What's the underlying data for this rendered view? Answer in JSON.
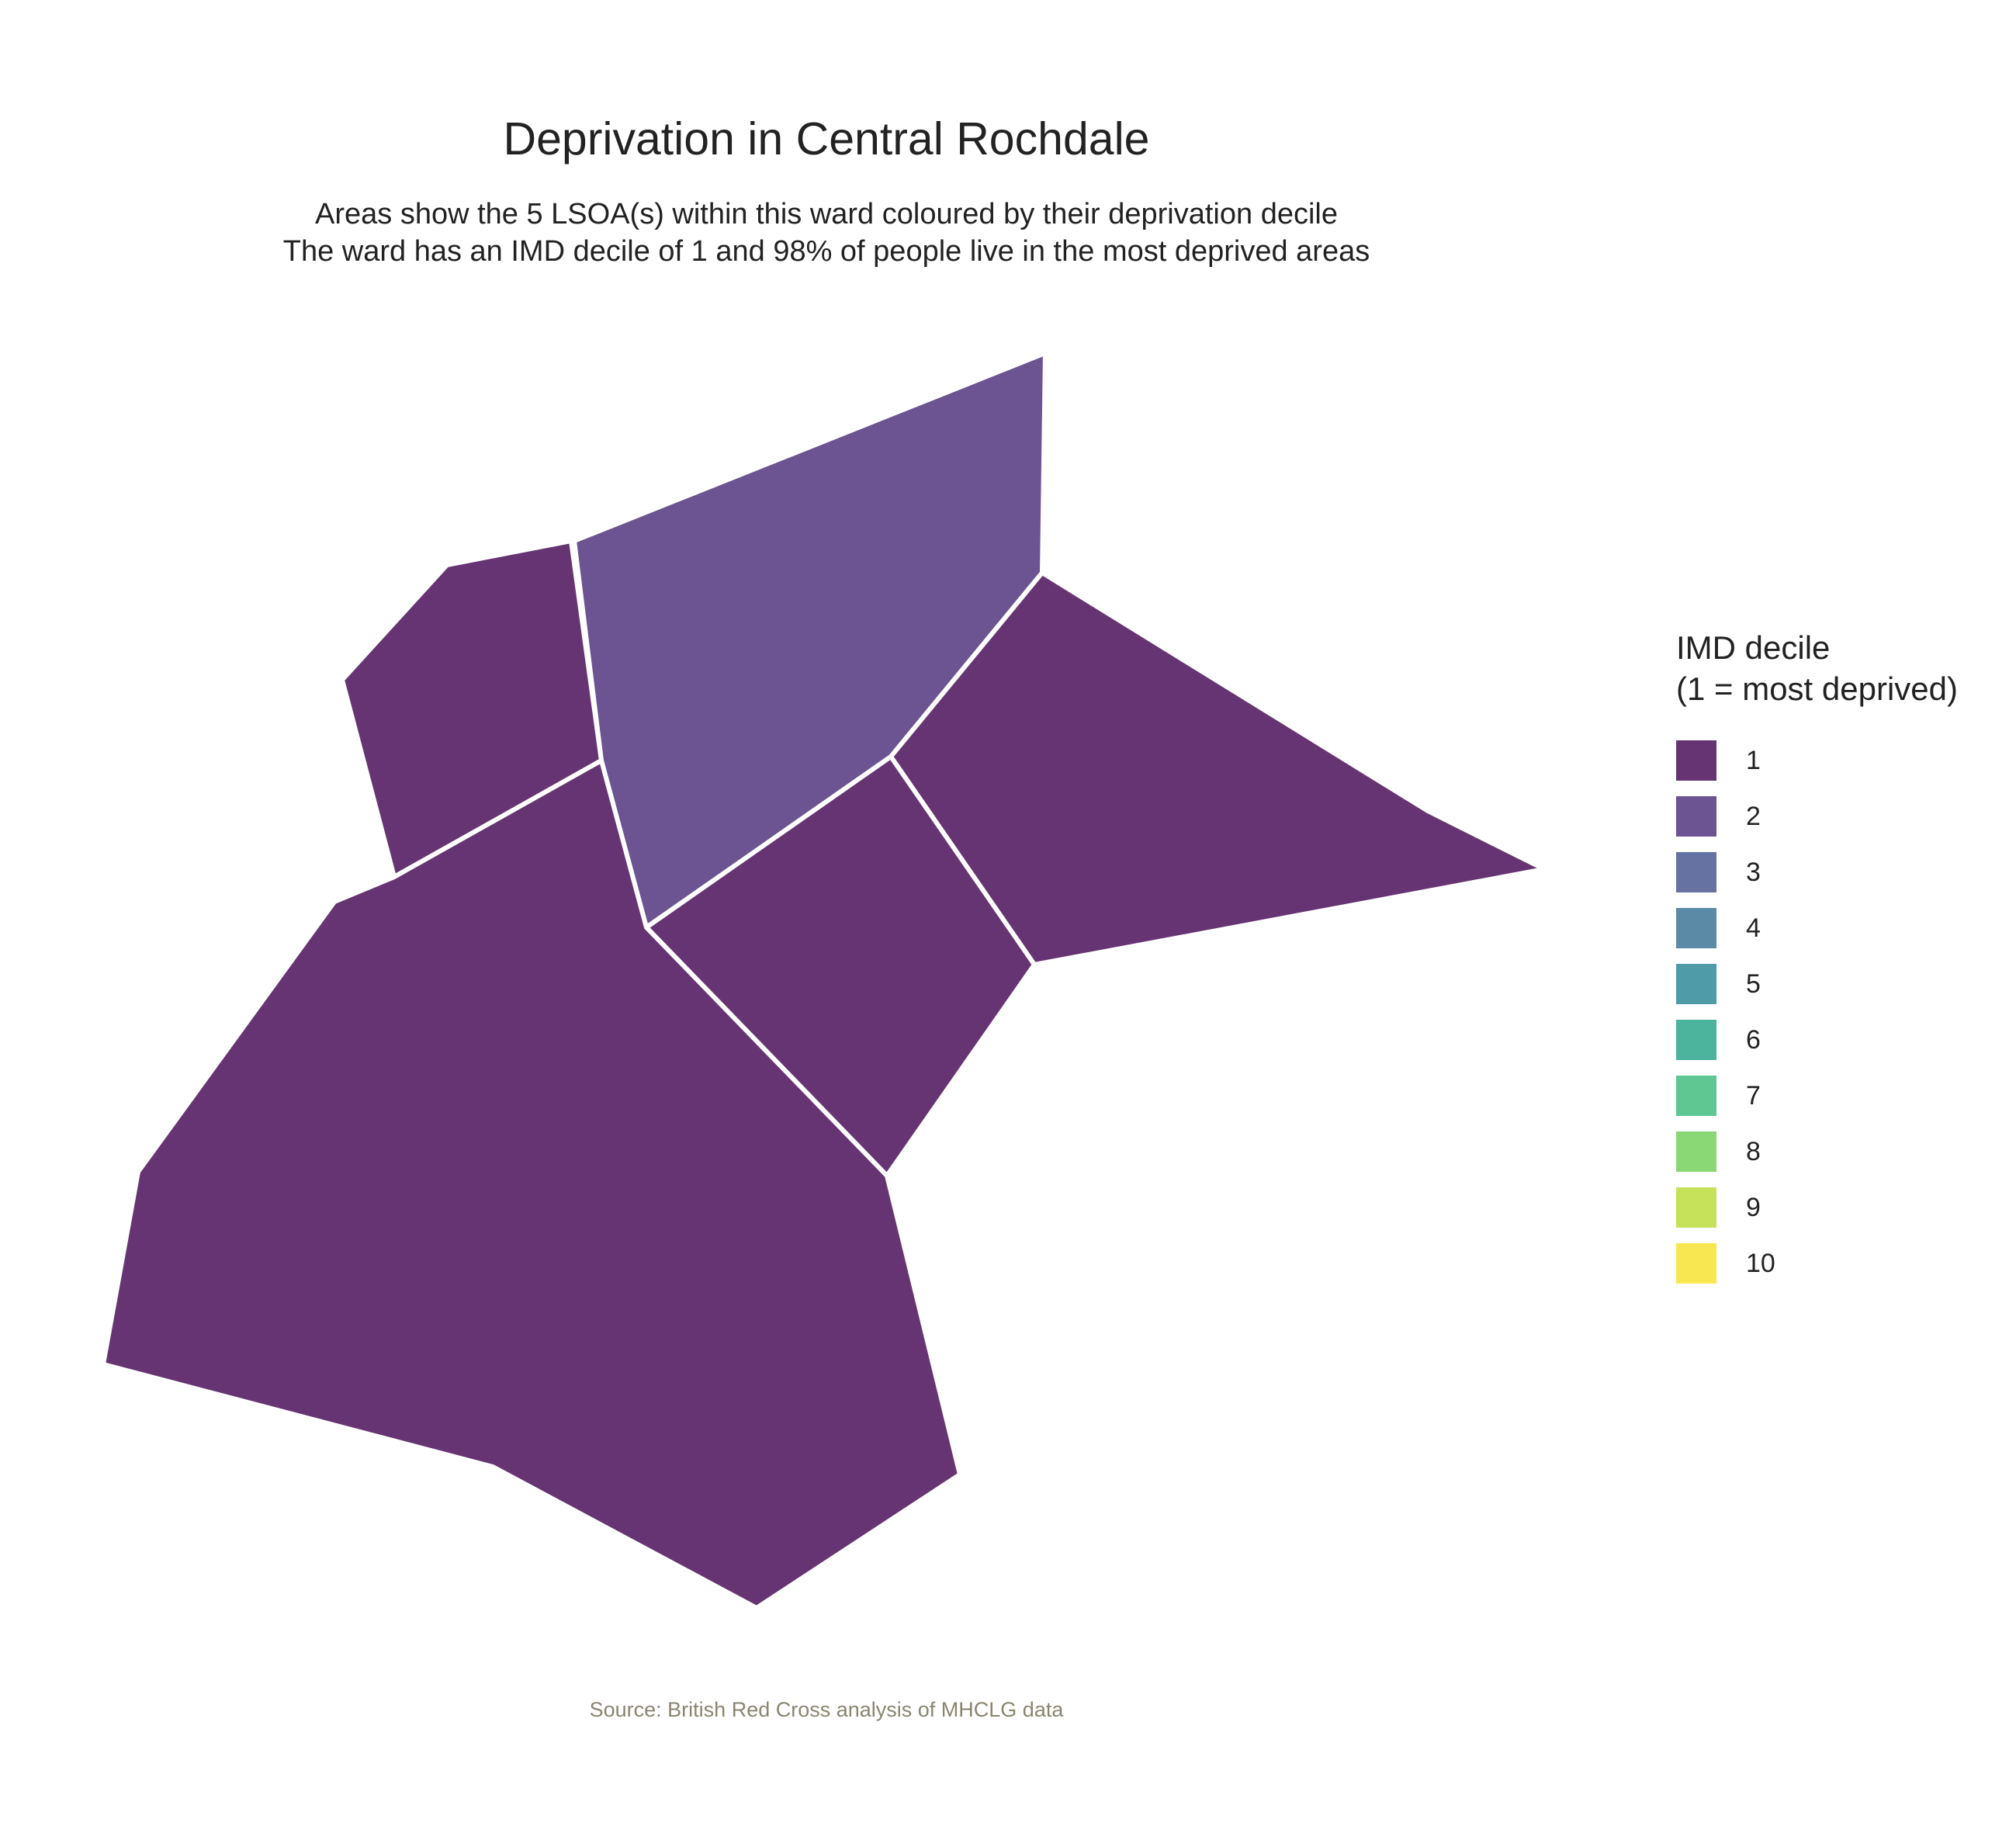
{
  "title": "Deprivation in Central Rochdale",
  "subtitle_line1": "Areas show the 5 LSOA(s) within this ward coloured by their deprivation decile",
  "subtitle_line2": "The ward has an IMD decile of 1 and 98% of people live in the most deprived areas",
  "caption": "Source: British Red Cross analysis of MHCLG data",
  "legend": {
    "title_line1": "IMD decile",
    "title_line2": "(1 = most deprived)",
    "items": [
      {
        "label": "1",
        "color": "#673473"
      },
      {
        "label": "2",
        "color": "#6c5391"
      },
      {
        "label": "3",
        "color": "#6572a2"
      },
      {
        "label": "4",
        "color": "#5a8aa5"
      },
      {
        "label": "5",
        "color": "#4f9ba8"
      },
      {
        "label": "6",
        "color": "#4cb39c"
      },
      {
        "label": "7",
        "color": "#5fc792"
      },
      {
        "label": "8",
        "color": "#8ad776"
      },
      {
        "label": "9",
        "color": "#c6e25a"
      },
      {
        "label": "10",
        "color": "#f9e752"
      }
    ]
  },
  "map_data": {
    "areas": [
      {
        "id": "lsoa-west-small",
        "decile": 1
      },
      {
        "id": "lsoa-north",
        "decile": 2
      },
      {
        "id": "lsoa-east",
        "decile": 1
      },
      {
        "id": "lsoa-centre-small",
        "decile": 1
      },
      {
        "id": "lsoa-south-large",
        "decile": 1
      }
    ],
    "border_color": "#ffffff"
  }
}
